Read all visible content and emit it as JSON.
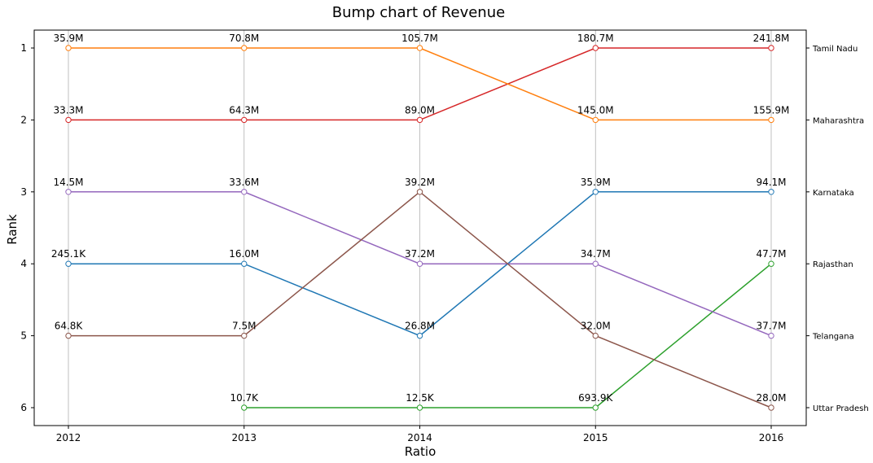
{
  "chart_data": {
    "type": "line",
    "title": "Bump chart of Revenue",
    "xlabel": "Ratio",
    "ylabel": "Rank",
    "categories": [
      "2012",
      "2013",
      "2014",
      "2015",
      "2016"
    ],
    "y_ticks": [
      "1",
      "2",
      "3",
      "4",
      "5",
      "6"
    ],
    "ylim": [
      1,
      6
    ],
    "y_inverted": true,
    "grid": "vertical",
    "series": [
      {
        "name": "Tamil Nadu",
        "color": "#d62728",
        "ranks": [
          2,
          2,
          2,
          1,
          1
        ],
        "labels": [
          "33.3M",
          "64.3M",
          "89.0M",
          "180.7M",
          "241.8M"
        ]
      },
      {
        "name": "Maharashtra",
        "color": "#ff7f0e",
        "ranks": [
          1,
          1,
          1,
          2,
          2
        ],
        "labels": [
          "35.9M",
          "70.8M",
          "105.7M",
          "145.0M",
          "155.9M"
        ]
      },
      {
        "name": "Karnataka",
        "color": "#1f77b4",
        "ranks": [
          4,
          4,
          5,
          3,
          3
        ],
        "labels": [
          "245.1K",
          "16.0M",
          "26.8M",
          "35.9M",
          "94.1M"
        ]
      },
      {
        "name": "Rajasthan",
        "color": "#2ca02c",
        "ranks": [
          null,
          6,
          6,
          6,
          4
        ],
        "labels": [
          null,
          "10.7K",
          "12.5K",
          "693.9K",
          "47.7M"
        ]
      },
      {
        "name": "Telangana",
        "color": "#9467bd",
        "ranks": [
          3,
          3,
          4,
          4,
          5
        ],
        "labels": [
          "14.5M",
          "33.6M",
          "37.2M",
          "34.7M",
          "37.7M"
        ]
      },
      {
        "name": "Uttar Pradesh",
        "color": "#8c564b",
        "ranks": [
          5,
          5,
          3,
          5,
          6
        ],
        "labels": [
          "64.8K",
          "7.5M",
          "39.2M",
          "32.0M",
          "28.0M"
        ]
      }
    ],
    "right_axis_labels": [
      "Tamil Nadu",
      "Maharashtra",
      "Karnataka",
      "Rajasthan",
      "Telangana",
      "Uttar Pradesh"
    ]
  }
}
